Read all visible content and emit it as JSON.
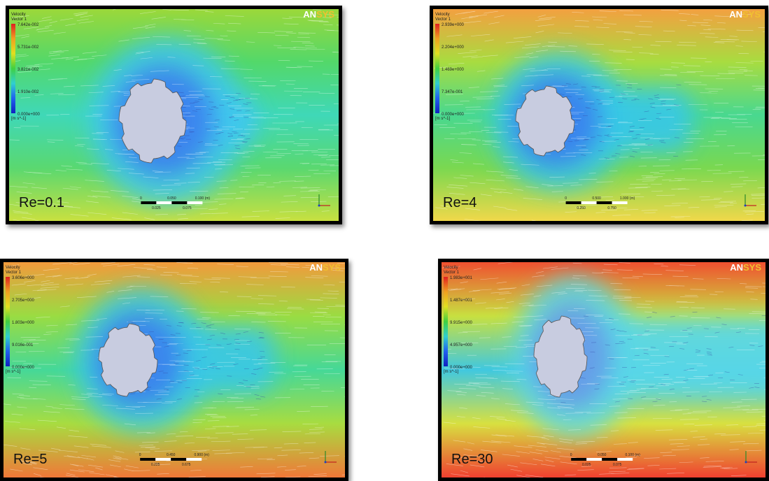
{
  "panels": [
    {
      "label": "Re=0.1",
      "legend": {
        "title": "Velocity",
        "subtitle": "Vector 1",
        "values": [
          "7.642e-002",
          "5.731e-002",
          "3.821e-002",
          "1.910e-002",
          "0.000e+000"
        ],
        "unit": "[m s^-1]"
      },
      "logo": [
        "AN",
        "SYS"
      ],
      "scale": [
        "0",
        "0.050",
        "0.100 (m)",
        "0.025",
        "0.075"
      ]
    },
    {
      "label": "Re=4",
      "legend": {
        "title": "Velocity",
        "subtitle": "Vector 1",
        "values": [
          "2.939e+000",
          "2.204e+000",
          "1.469e+000",
          "7.347e-001",
          "0.000e+000"
        ],
        "unit": "[m s^-1]"
      },
      "logo": [
        "AN",
        "SYS"
      ],
      "scale": [
        "0",
        "0.500",
        "1.000 (m)",
        "0.250",
        "0.750"
      ]
    },
    {
      "label": "Re=5",
      "legend": {
        "title": "Velocity",
        "subtitle": "Vector 1",
        "values": [
          "3.606e+000",
          "2.705e+000",
          "1.803e+000",
          "9.016e-001",
          "0.000e+000"
        ],
        "unit": "[m s^-1]"
      },
      "logo": [
        "AN",
        "SYS"
      ],
      "scale": [
        "0",
        "0.450",
        "0.900 (m)",
        "0.225",
        "0.675"
      ]
    },
    {
      "label": "Re=30",
      "legend": {
        "title": "Velocity",
        "subtitle": "Vector 1",
        "values": [
          "1.983e+001",
          "1.487e+001",
          "9.915e+000",
          "4.957e+000",
          "0.000e+000"
        ],
        "unit": "[m s^-1]"
      },
      "logo": [
        "AN",
        "SYS"
      ],
      "scale": [
        "0",
        "0.050",
        "0.100 (m)",
        "0.025",
        "0.075"
      ]
    }
  ]
}
